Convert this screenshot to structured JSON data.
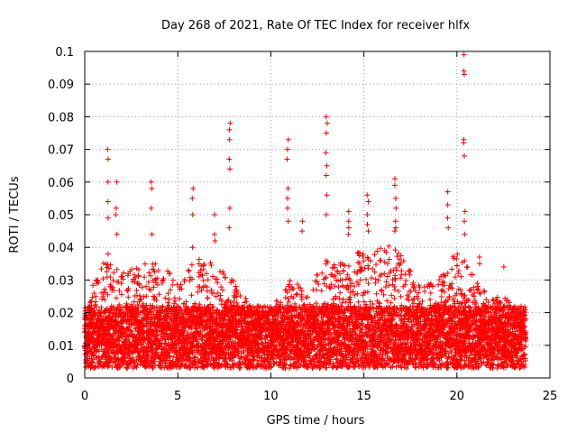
{
  "chart_data": {
    "type": "scatter",
    "title": "Day 268 of 2021, Rate Of TEC Index for receiver hlfx",
    "xlabel": "GPS time / hours",
    "ylabel": "ROTI / TECUs",
    "xlim": [
      0,
      25
    ],
    "ylim": [
      0,
      0.1
    ],
    "x_ticks": [
      "0",
      "5",
      "10",
      "15",
      "20",
      "25"
    ],
    "y_ticks": [
      "0",
      "0.01",
      "0.02",
      "0.03",
      "0.04",
      "0.05",
      "0.06",
      "0.07",
      "0.08",
      "0.09",
      "0.1"
    ],
    "grid": true,
    "marker": "+",
    "series": [
      {
        "name": "ROTI",
        "color": "#ff0000",
        "x_range": [
          0,
          23.7
        ],
        "sample_interval_hours": 0.025,
        "baseline_band": [
          0.003,
          0.022
        ],
        "envelope": [
          [
            0,
            0.022
          ],
          [
            0.5,
            0.03
          ],
          [
            1,
            0.037
          ],
          [
            2,
            0.033
          ],
          [
            3,
            0.035
          ],
          [
            4,
            0.035
          ],
          [
            5,
            0.03
          ],
          [
            6,
            0.037
          ],
          [
            7,
            0.035
          ],
          [
            8,
            0.03
          ],
          [
            9,
            0.022
          ],
          [
            10,
            0.022
          ],
          [
            11,
            0.03
          ],
          [
            12,
            0.027
          ],
          [
            13,
            0.037
          ],
          [
            14,
            0.035
          ],
          [
            15,
            0.04
          ],
          [
            16,
            0.042
          ],
          [
            17,
            0.04
          ],
          [
            18,
            0.028
          ],
          [
            19,
            0.03
          ],
          [
            20,
            0.04
          ],
          [
            21,
            0.03
          ],
          [
            22,
            0.025
          ],
          [
            23,
            0.024
          ],
          [
            23.7,
            0.02
          ]
        ],
        "spikes": [
          {
            "x": 1.25,
            "values": [
              0.07,
              0.067,
              0.06,
              0.054,
              0.049,
              0.038
            ]
          },
          {
            "x": 1.7,
            "values": [
              0.06,
              0.052,
              0.05,
              0.044
            ]
          },
          {
            "x": 3.6,
            "values": [
              0.06,
              0.058,
              0.052,
              0.044
            ]
          },
          {
            "x": 5.8,
            "values": [
              0.058,
              0.055,
              0.05,
              0.04
            ]
          },
          {
            "x": 7,
            "values": [
              0.05,
              0.044,
              0.042
            ]
          },
          {
            "x": 7.8,
            "values": [
              0.078,
              0.076,
              0.073,
              0.067,
              0.064,
              0.052,
              0.046
            ]
          },
          {
            "x": 10.9,
            "values": [
              0.073,
              0.07,
              0.067,
              0.058,
              0.055,
              0.052,
              0.048
            ]
          },
          {
            "x": 11.7,
            "values": [
              0.048,
              0.045
            ]
          },
          {
            "x": 13,
            "values": [
              0.08,
              0.078,
              0.075,
              0.069,
              0.065,
              0.062,
              0.056,
              0.05
            ]
          },
          {
            "x": 14.2,
            "values": [
              0.051,
              0.048,
              0.046,
              0.044
            ]
          },
          {
            "x": 15.2,
            "values": [
              0.056,
              0.054,
              0.05,
              0.047,
              0.045
            ]
          },
          {
            "x": 16.7,
            "values": [
              0.061,
              0.059,
              0.055,
              0.052,
              0.048,
              0.046,
              0.045
            ]
          },
          {
            "x": 19.5,
            "values": [
              0.057,
              0.053,
              0.049,
              0.046
            ]
          },
          {
            "x": 20.4,
            "values": [
              0.099,
              0.094,
              0.093,
              0.073,
              0.072,
              0.068,
              0.051,
              0.048,
              0.044
            ]
          },
          {
            "x": 21.2,
            "values": [
              0.037,
              0.035
            ]
          },
          {
            "x": 22.5,
            "values": [
              0.034
            ]
          }
        ]
      }
    ]
  }
}
